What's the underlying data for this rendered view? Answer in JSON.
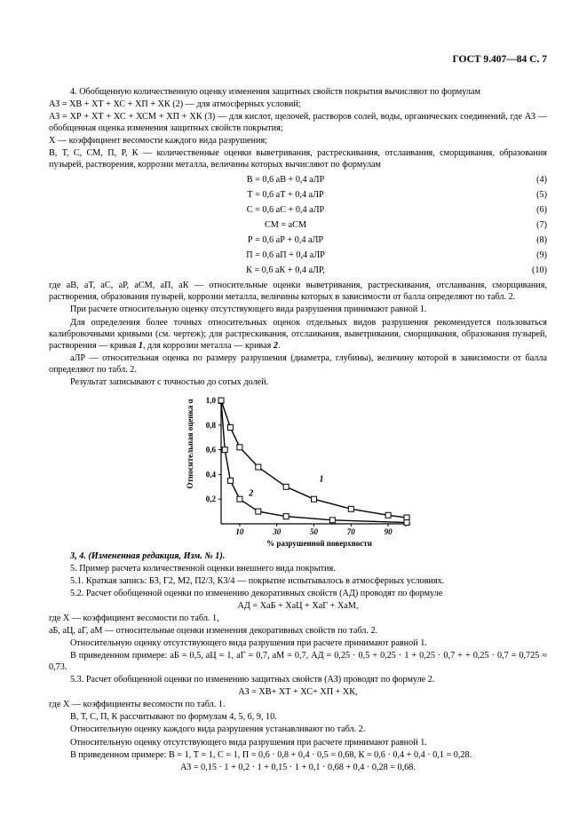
{
  "header": "ГОСТ 9.407—84 С. 7",
  "p4_line1": "4. Обобщенную количественную оценку изменения защитных свойств покрытия вычисляют по формулам",
  "p4_line2": "АЗ = ХВ + ХТ + ХС + ХП + ХК (2) — для атмосферных условий;",
  "p4_line3": "АЗ = ХР + ХТ + ХС + ХСМ + ХП + ХК (3) — для кислот, щелочей, растворов солей, воды, органических соединений, где АЗ — обобщенная оценка изменения защитных свойств покрытия;",
  "p4_x": "Х — коэффициент весомости каждого вида разрушения;",
  "p4_vars": "В, Т, С, СМ, П, Р, К — количественные оценки выветривания, растрескивания, отслаивания, сморщивания, образования пузырей, растворения, коррозии металла, величины которых вычисляют по формулам",
  "formulas": {
    "f4": {
      "text": "В = 0,6 аВ + 0,4 аЛР",
      "num": "(4)"
    },
    "f5": {
      "text": "Т = 0,6 аТ + 0,4 аЛР",
      "num": "(5)"
    },
    "f6": {
      "text": "С = 0,6 аС + 0,4 аЛР",
      "num": "(6)"
    },
    "f7": {
      "text": "СМ = аСМ",
      "num": "(7)"
    },
    "f8": {
      "text": "Р = 0,6 аР + 0,4 аЛР",
      "num": "(8)"
    },
    "f9": {
      "text": "П = 0,6 аП + 0,4 аЛР",
      "num": "(9)"
    },
    "f10": {
      "text": "К = 0,6 аК + 0,4 аЛР,",
      "num": "(10)"
    }
  },
  "after_f_1": "где аВ, аТ, аС, аР, аСМ, аП, аК — относительные оценки выветривания, растрескивания, отслаивания, сморщивания, растворения, образования пузырей, коррозии металла, величины которых в зависимости от балла определяют по табл. 2.",
  "after_f_2": "При расчете относительную оценку отсутствующего вида разрушения принимают равной 1.",
  "after_f_3": "Для определения более точных относительных оценок отдельных видов разрушения рекомендуется пользоваться калибровочными кривыми (см. чертеж); для растрескивания, отслаивания, выветривания, сморщивания, образования пузырей, растворения — кривая 1, для коррозии металла — кривая 2.",
  "after_f_4": "аЛР — относительная оценка по размеру разрушения (диаметра, глубины), величину которой в зависимости от балла определяют по табл. 2.",
  "after_f_5": "Результат записывают с точностью до сотых долей.",
  "changed": "3, 4. (Измененная редакция, Изм. № 1).",
  "p5": "5. Пример расчета количественной оценки внешнего вида покрытия.",
  "p51": "5.1. Краткая запись: Б3, Г2, М2, П2/3, К3/4 — покрытие испытывалось в атмосферных условиях.",
  "p52": "5.2. Расчет обобщенной оценки по изменению декоративных свойств (АД) проводят по формуле",
  "ad_formula": "АД = ХаБ + ХаЦ + ХаГ + ХаМ,",
  "p52_x": "где Х — коэффициент весомости по табл. 1,",
  "p52_ab": "аБ, аЦ, аГ, аМ — относительные оценки изменения декоративных свойств по табл. 2.",
  "p52_note1": "Относительную оценку отсутствующего вида разрушения при расчете принимают равной 1.",
  "p52_note2": "В приведенном примере: аБ = 0,5, аЦ = 1, аГ = 0,7, аМ = 0,7, АД = 0,25 · 0,5 + 0,25 · 1 + 0,25 · 0,7 + + 0,25 · 0,7 = 0,725 ≈ 0,73.",
  "p53": "5.3. Расчет обобщенной оценки по изменению защитных свойств (АЗ) проводят по формуле 2.",
  "az_formula": "АЗ = ХВ+ ХТ + ХС+ ХП + ХК,",
  "p53_x": "где Х — коэффициенты весомости по табл. 1.",
  "p53_v": "В, Т, С, П, К рассчитывают по формулам 4, 5, 6, 9, 10.",
  "p53_rel": "Относительную оценку каждого вида разрушения устанавливают по табл. 2.",
  "p53_note1": "Относительную оценку отсутствующего вида разрушения при расчете принимают равной 1.",
  "p53_note2": "В приведенном примере: В = 1, Т = 1, С = 1, П = 0,6 · 0,8 + 0,4 · 0,5 = 0,68, К = 0,6 · 0,4 + 0,4 · 0,1 = 0,28.",
  "p53_note3": "АЗ = 0,15 · 1 + 0,2 · 1 + 0,15 · 1 + 0,1 · 0,68 + 0,4 · 0,28 = 0,68.",
  "chart": {
    "type": "line",
    "x_label": "% разрушенной поверхности",
    "y_label": "Относительная оценка α",
    "x_range": [
      0,
      100
    ],
    "y_range": [
      0,
      1.0
    ],
    "x_ticks": [
      10,
      30,
      50,
      70,
      90
    ],
    "y_ticks": [
      0.2,
      0.4,
      0.6,
      0.8,
      1.0
    ],
    "y_tick_labels": [
      "0,2",
      "0,4",
      "0,6",
      "0,8",
      "1,0"
    ],
    "line_color": "#000000",
    "line_width": 1.4,
    "marker_size": 3.0,
    "marker_style": "square-open",
    "background": "#ffffff",
    "curves": {
      "c1": {
        "label": "1",
        "points": [
          [
            0,
            1.0
          ],
          [
            5,
            0.78
          ],
          [
            10,
            0.62
          ],
          [
            20,
            0.46
          ],
          [
            35,
            0.3
          ],
          [
            50,
            0.2
          ],
          [
            70,
            0.12
          ],
          [
            90,
            0.07
          ],
          [
            100,
            0.05
          ]
        ]
      },
      "c2": {
        "label": "2",
        "points": [
          [
            0,
            1.0
          ],
          [
            2,
            0.6
          ],
          [
            5,
            0.35
          ],
          [
            10,
            0.2
          ],
          [
            20,
            0.1
          ],
          [
            35,
            0.06
          ],
          [
            60,
            0.03
          ],
          [
            100,
            0.01
          ]
        ]
      }
    }
  }
}
